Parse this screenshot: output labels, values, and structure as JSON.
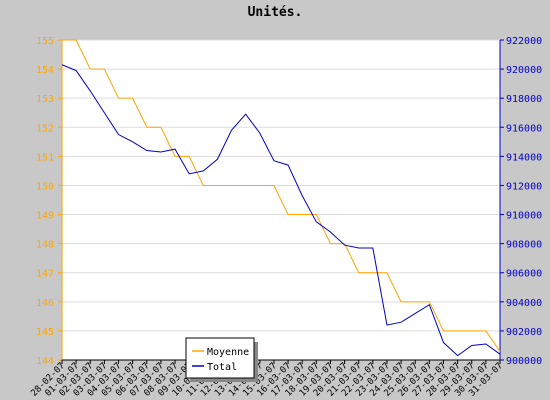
{
  "chart_data": {
    "type": "line",
    "title": "Unités.",
    "categories": [
      "28-02-07",
      "01-03-07",
      "02-03-07",
      "03-03-07",
      "04-03-07",
      "05-03-07",
      "06-03-07",
      "07-03-07",
      "08-03-07",
      "09-03-07",
      "10-03-07",
      "11-03-07",
      "12-03-07",
      "13-03-07",
      "14-03-07",
      "15-03-07",
      "16-03-07",
      "17-03-07",
      "18-03-07",
      "19-03-07",
      "20-03-07",
      "21-03-07",
      "22-03-07",
      "23-03-07",
      "24-03-07",
      "25-03-07",
      "26-03-07",
      "27-03-07",
      "28-03-07",
      "29-03-07",
      "30-03-07",
      "31-03-07"
    ],
    "series": [
      {
        "name": "Moyenne",
        "color": "#ffa500",
        "values": [
          155,
          155,
          154,
          154,
          153,
          153,
          152,
          152,
          151,
          151,
          150,
          150,
          150,
          150,
          150,
          150,
          149,
          149,
          149,
          148,
          148,
          147,
          147,
          147,
          146,
          146,
          146,
          145,
          145,
          145,
          145,
          144.3
        ]
      },
      {
        "name": "Total",
        "color": "#0000cc",
        "axis": "y2",
        "values": [
          920300,
          919900,
          918500,
          917000,
          915500,
          915000,
          914400,
          914300,
          914500,
          912800,
          913000,
          913800,
          915800,
          916900,
          915600,
          913700,
          913400,
          911300,
          909500,
          908800,
          907900,
          907700,
          907700,
          902400,
          902600,
          903200,
          903800,
          901200,
          900300,
          901000,
          901100,
          900400
        ]
      }
    ],
    "ylim": [
      144,
      155
    ],
    "yticks": [
      144,
      145,
      146,
      147,
      148,
      149,
      150,
      151,
      152,
      153,
      154,
      155
    ],
    "y2lim": [
      900000,
      922000
    ],
    "y2ticks": [
      900000,
      902000,
      904000,
      906000,
      908000,
      910000,
      912000,
      914000,
      916000,
      918000,
      920000,
      922000
    ],
    "grid": true,
    "legend": "bottom"
  }
}
